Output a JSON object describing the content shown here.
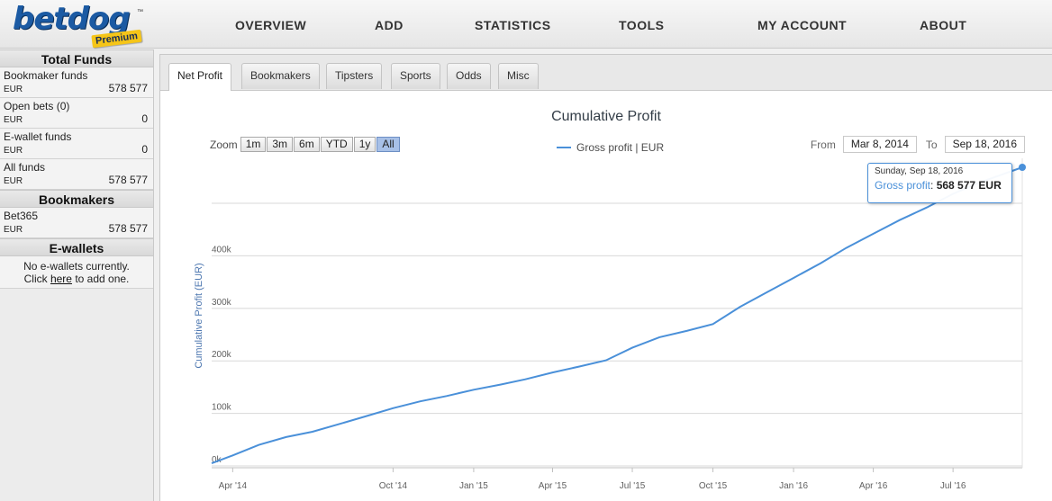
{
  "brand": {
    "name": "betdog",
    "badge": "Premium",
    "tm": "™"
  },
  "nav": {
    "overview": "OVERVIEW",
    "add": "ADD",
    "statistics": "STATISTICS",
    "tools": "TOOLS",
    "my_account": "MY ACCOUNT",
    "about": "ABOUT"
  },
  "sidebar": {
    "total_funds": {
      "title": "Total Funds",
      "rows": [
        {
          "label": "Bookmaker funds",
          "currency": "EUR",
          "amount": "578 577"
        },
        {
          "label": "Open bets (0)",
          "currency": "EUR",
          "amount": "0"
        },
        {
          "label": "E-wallet funds",
          "currency": "EUR",
          "amount": "0"
        },
        {
          "label": "All funds",
          "currency": "EUR",
          "amount": "578 577"
        }
      ]
    },
    "bookmakers": {
      "title": "Bookmakers",
      "rows": [
        {
          "label": "Bet365",
          "currency": "EUR",
          "amount": "578 577"
        }
      ]
    },
    "ewallets": {
      "title": "E-wallets",
      "line1": "No e-wallets currently.",
      "click": "Click",
      "here": "here",
      "tail": "to add one."
    }
  },
  "tabs": [
    "Net Profit",
    "Bookmakers",
    "Tipsters",
    "Sports",
    "Odds",
    "Misc"
  ],
  "chart": {
    "title": "Cumulative Profit",
    "zoom_label": "Zoom",
    "zoom_buttons": [
      "1m",
      "3m",
      "6m",
      "YTD",
      "1y",
      "All"
    ],
    "zoom_selected": "All",
    "legend": "Gross profit | EUR",
    "from_label": "From",
    "from_value": "Mar 8, 2014",
    "to_label": "To",
    "to_value": "Sep 18, 2016",
    "tooltip_date": "Sunday, Sep 18, 2016",
    "tooltip_series": "Gross profit",
    "tooltip_value": "568 577 EUR",
    "line_color": "#4a90d9"
  },
  "chart_data": {
    "type": "line",
    "title": "Cumulative Profit",
    "ylabel": "Cumulative Profit (EUR)",
    "xlabel": "",
    "ylim": [
      0,
      568577
    ],
    "yticks": [
      "0k",
      "100k",
      "200k",
      "300k",
      "400k"
    ],
    "ytick_values": [
      0,
      100000,
      200000,
      300000,
      400000
    ],
    "xticks": [
      "Apr '14",
      "Oct '14",
      "Jan '15",
      "Apr '15",
      "Jul '15",
      "Oct '15",
      "Jan '16",
      "Apr '16",
      "Jul '16"
    ],
    "xtick_dates": [
      "2014-04-01",
      "2014-10-01",
      "2015-01-01",
      "2015-04-01",
      "2015-07-01",
      "2015-10-01",
      "2016-01-01",
      "2016-04-01",
      "2016-07-01"
    ],
    "xlim": [
      "2014-03-08",
      "2016-09-18"
    ],
    "series": [
      {
        "name": "Gross profit | EUR",
        "x": [
          "2014-03-08",
          "2014-04-01",
          "2014-05-01",
          "2014-06-01",
          "2014-07-01",
          "2014-08-01",
          "2014-09-01",
          "2014-10-01",
          "2014-11-01",
          "2014-12-01",
          "2015-01-01",
          "2015-02-01",
          "2015-03-01",
          "2015-04-01",
          "2015-05-01",
          "2015-06-01",
          "2015-07-01",
          "2015-08-01",
          "2015-09-01",
          "2015-10-01",
          "2015-11-01",
          "2015-12-01",
          "2016-01-01",
          "2016-02-01",
          "2016-03-01",
          "2016-04-01",
          "2016-05-01",
          "2016-06-01",
          "2016-07-01",
          "2016-08-01",
          "2016-09-18"
        ],
        "values": [
          5000,
          20000,
          40000,
          55000,
          65000,
          80000,
          95000,
          110000,
          123000,
          133000,
          145000,
          155000,
          165000,
          178000,
          189000,
          201000,
          225000,
          245000,
          257000,
          270000,
          303000,
          330000,
          358000,
          386000,
          415000,
          442000,
          468000,
          492000,
          518000,
          540000,
          568577
        ]
      }
    ],
    "grid": true,
    "legend": "top-center"
  }
}
